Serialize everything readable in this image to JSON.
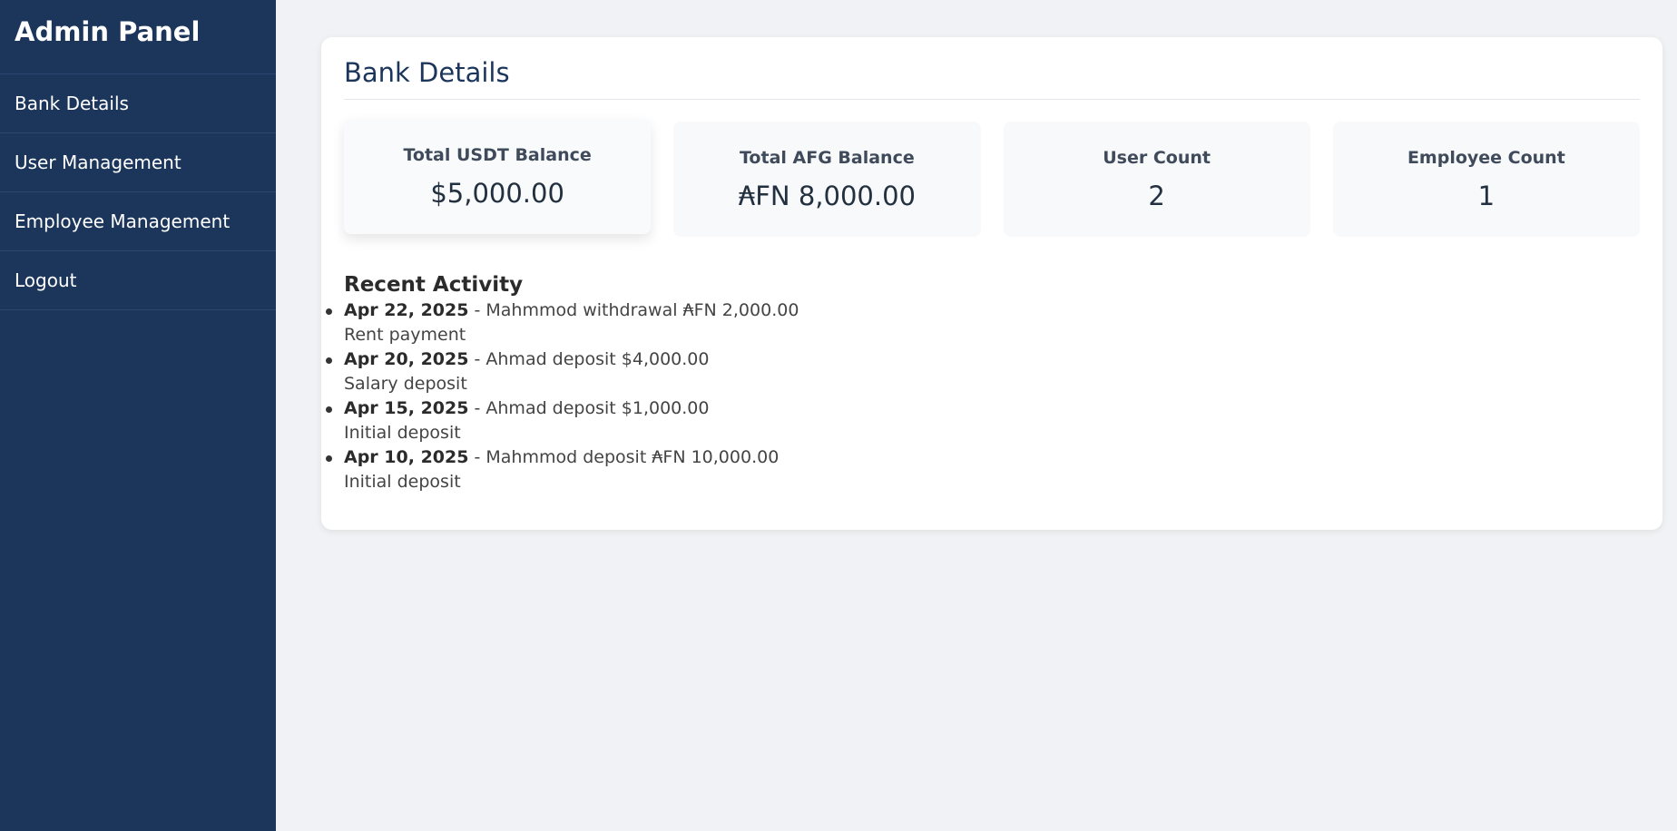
{
  "sidebar": {
    "brand": "Admin Panel",
    "items": [
      {
        "label": "Bank Details"
      },
      {
        "label": "User Management"
      },
      {
        "label": "Employee Management"
      },
      {
        "label": "Logout"
      }
    ]
  },
  "main": {
    "title": "Bank Details",
    "cards": [
      {
        "label": "Total USDT Balance",
        "value": "$5,000.00"
      },
      {
        "label": "Total AFG Balance",
        "value": "₳FN 8,000.00"
      },
      {
        "label": "User Count",
        "value": "2"
      },
      {
        "label": "Employee Count",
        "value": "1"
      }
    ],
    "activity": {
      "title": "Recent Activity",
      "separator": " - ",
      "items": [
        {
          "date": "Apr 22, 2025",
          "desc": "Mahmmod withdrawal ₳FN 2,000.00",
          "note": "Rent payment"
        },
        {
          "date": "Apr 20, 2025",
          "desc": "Ahmad deposit $4,000.00",
          "note": "Salary deposit"
        },
        {
          "date": "Apr 15, 2025",
          "desc": "Ahmad deposit $1,000.00",
          "note": "Initial deposit"
        },
        {
          "date": "Apr 10, 2025",
          "desc": "Mahmmod deposit ₳FN 10,000.00",
          "note": "Initial deposit"
        }
      ]
    }
  },
  "colors": {
    "sidebar_bg": "#1c365b",
    "page_bg": "#f0f2f5",
    "title_color": "#1c365b",
    "card_bg": "#f7f9fb"
  }
}
